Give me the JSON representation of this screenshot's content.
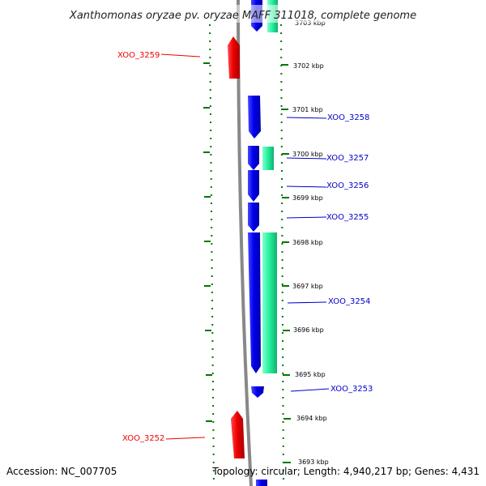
{
  "title": "Xanthomonas oryzae pv. oryzae MAFF 311018, complete genome",
  "footer": {
    "accession": "Accession: NC_007705",
    "summary": "Topology: circular; Length: 4,940,217 bp; Genes: 4,431"
  },
  "ruler": {
    "unit": "kbp",
    "labels": [
      "3703 kbp",
      "3702 kbp",
      "3701 kbp",
      "3700 kbp",
      "3699 kbp",
      "3698 kbp",
      "3697 kbp",
      "3696 kbp",
      "3695 kbp",
      "3694 kbp",
      "3693 kbp"
    ]
  },
  "colors": {
    "forward_strand": "#0000ee",
    "reverse_strand": "#ee0000",
    "gc_feature": "#22ee99",
    "backbone": "#888888",
    "ticks": "#007700"
  },
  "genes": [
    {
      "label": "XOO_3259",
      "strand": "reverse",
      "color": "#ee0000"
    },
    {
      "label": "XOO_3258",
      "strand": "forward",
      "color": "#0000cc"
    },
    {
      "label": "XOO_3257",
      "strand": "forward",
      "color": "#0000cc"
    },
    {
      "label": "XOO_3256",
      "strand": "forward",
      "color": "#0000cc"
    },
    {
      "label": "XOO_3255",
      "strand": "forward",
      "color": "#0000cc"
    },
    {
      "label": "XOO_3254",
      "strand": "forward",
      "color": "#0000cc"
    },
    {
      "label": "XOO_3253",
      "strand": "forward",
      "color": "#0000cc"
    },
    {
      "label": "XOO_3252",
      "strand": "reverse",
      "color": "#ee0000"
    }
  ]
}
